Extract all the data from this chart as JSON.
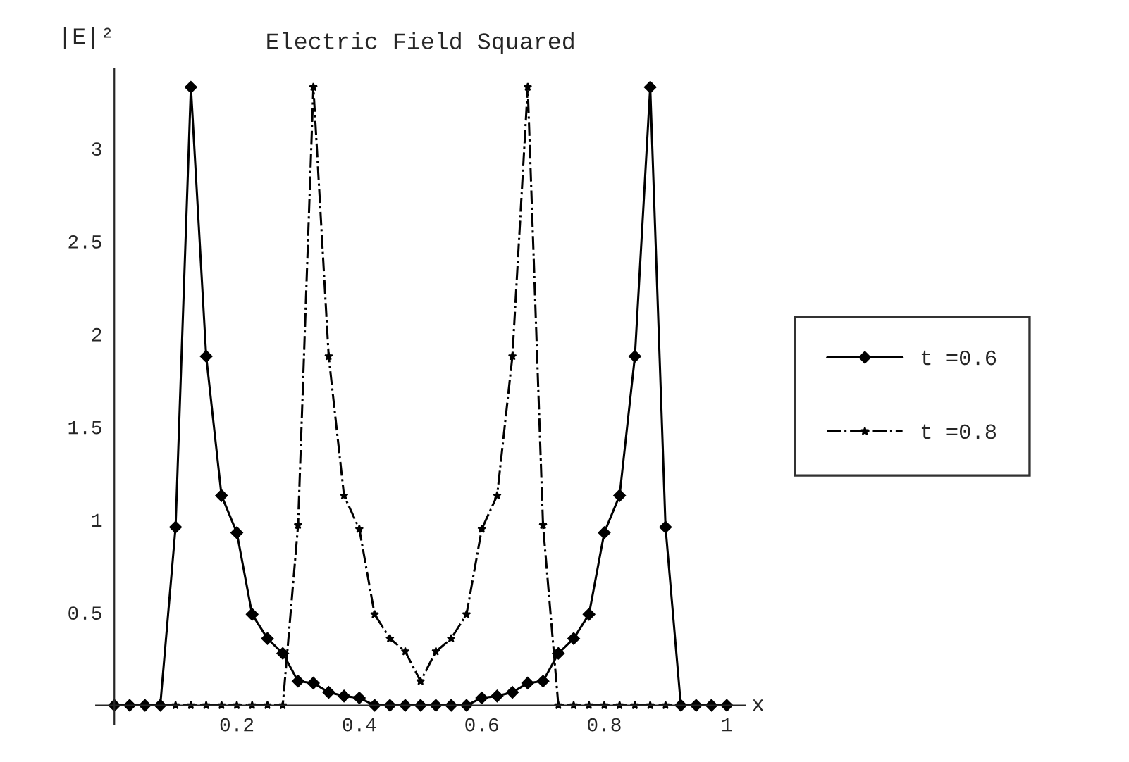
{
  "chart_data": {
    "type": "line",
    "title": "Electric Field Squared",
    "xlabel": "x",
    "ylabel": "|E|²",
    "x": [
      0,
      0.025,
      0.05,
      0.075,
      0.1,
      0.125,
      0.15,
      0.175,
      0.2,
      0.225,
      0.25,
      0.275,
      0.3,
      0.325,
      0.35,
      0.375,
      0.4,
      0.425,
      0.45,
      0.475,
      0.5,
      0.525,
      0.55,
      0.575,
      0.6,
      0.625,
      0.65,
      0.675,
      0.7,
      0.725,
      0.75,
      0.775,
      0.8,
      0.825,
      0.85,
      0.875,
      0.9,
      0.925,
      0.95,
      0.975,
      1
    ],
    "series": [
      {
        "name": "t =0.6",
        "color": "#000000",
        "marker": "diamond",
        "line_style": "solid",
        "values": [
          0,
          0,
          0,
          0,
          0.96,
          3.33,
          1.88,
          1.13,
          0.93,
          0.49,
          0.36,
          0.28,
          0.13,
          0.12,
          0.07,
          0.05,
          0.04,
          0,
          0,
          0,
          0,
          0,
          0,
          0,
          0.04,
          0.05,
          0.07,
          0.12,
          0.13,
          0.28,
          0.36,
          0.49,
          0.93,
          1.13,
          1.88,
          3.33,
          0.96,
          0,
          0,
          0,
          0
        ]
      },
      {
        "name": "t =0.8",
        "color": "#000000",
        "marker": "star",
        "line_style": "dashdot",
        "values": [
          0,
          0,
          0,
          0,
          0,
          0,
          0,
          0,
          0,
          0,
          0,
          0,
          0.97,
          3.33,
          1.88,
          1.13,
          0.95,
          0.49,
          0.36,
          0.29,
          0.13,
          0.29,
          0.36,
          0.49,
          0.95,
          1.13,
          1.88,
          3.33,
          0.97,
          0,
          0,
          0,
          0,
          0,
          0,
          0,
          0,
          0,
          0,
          0,
          0
        ]
      }
    ],
    "xlim": [
      -0.03,
      1.03
    ],
    "ylim": [
      -0.1,
      3.43
    ],
    "xticks": [
      0.2,
      0.4,
      0.6,
      0.8,
      1
    ],
    "yticks": [
      0.5,
      1,
      1.5,
      2,
      2.5,
      3
    ],
    "grid": false,
    "legend": "right"
  }
}
